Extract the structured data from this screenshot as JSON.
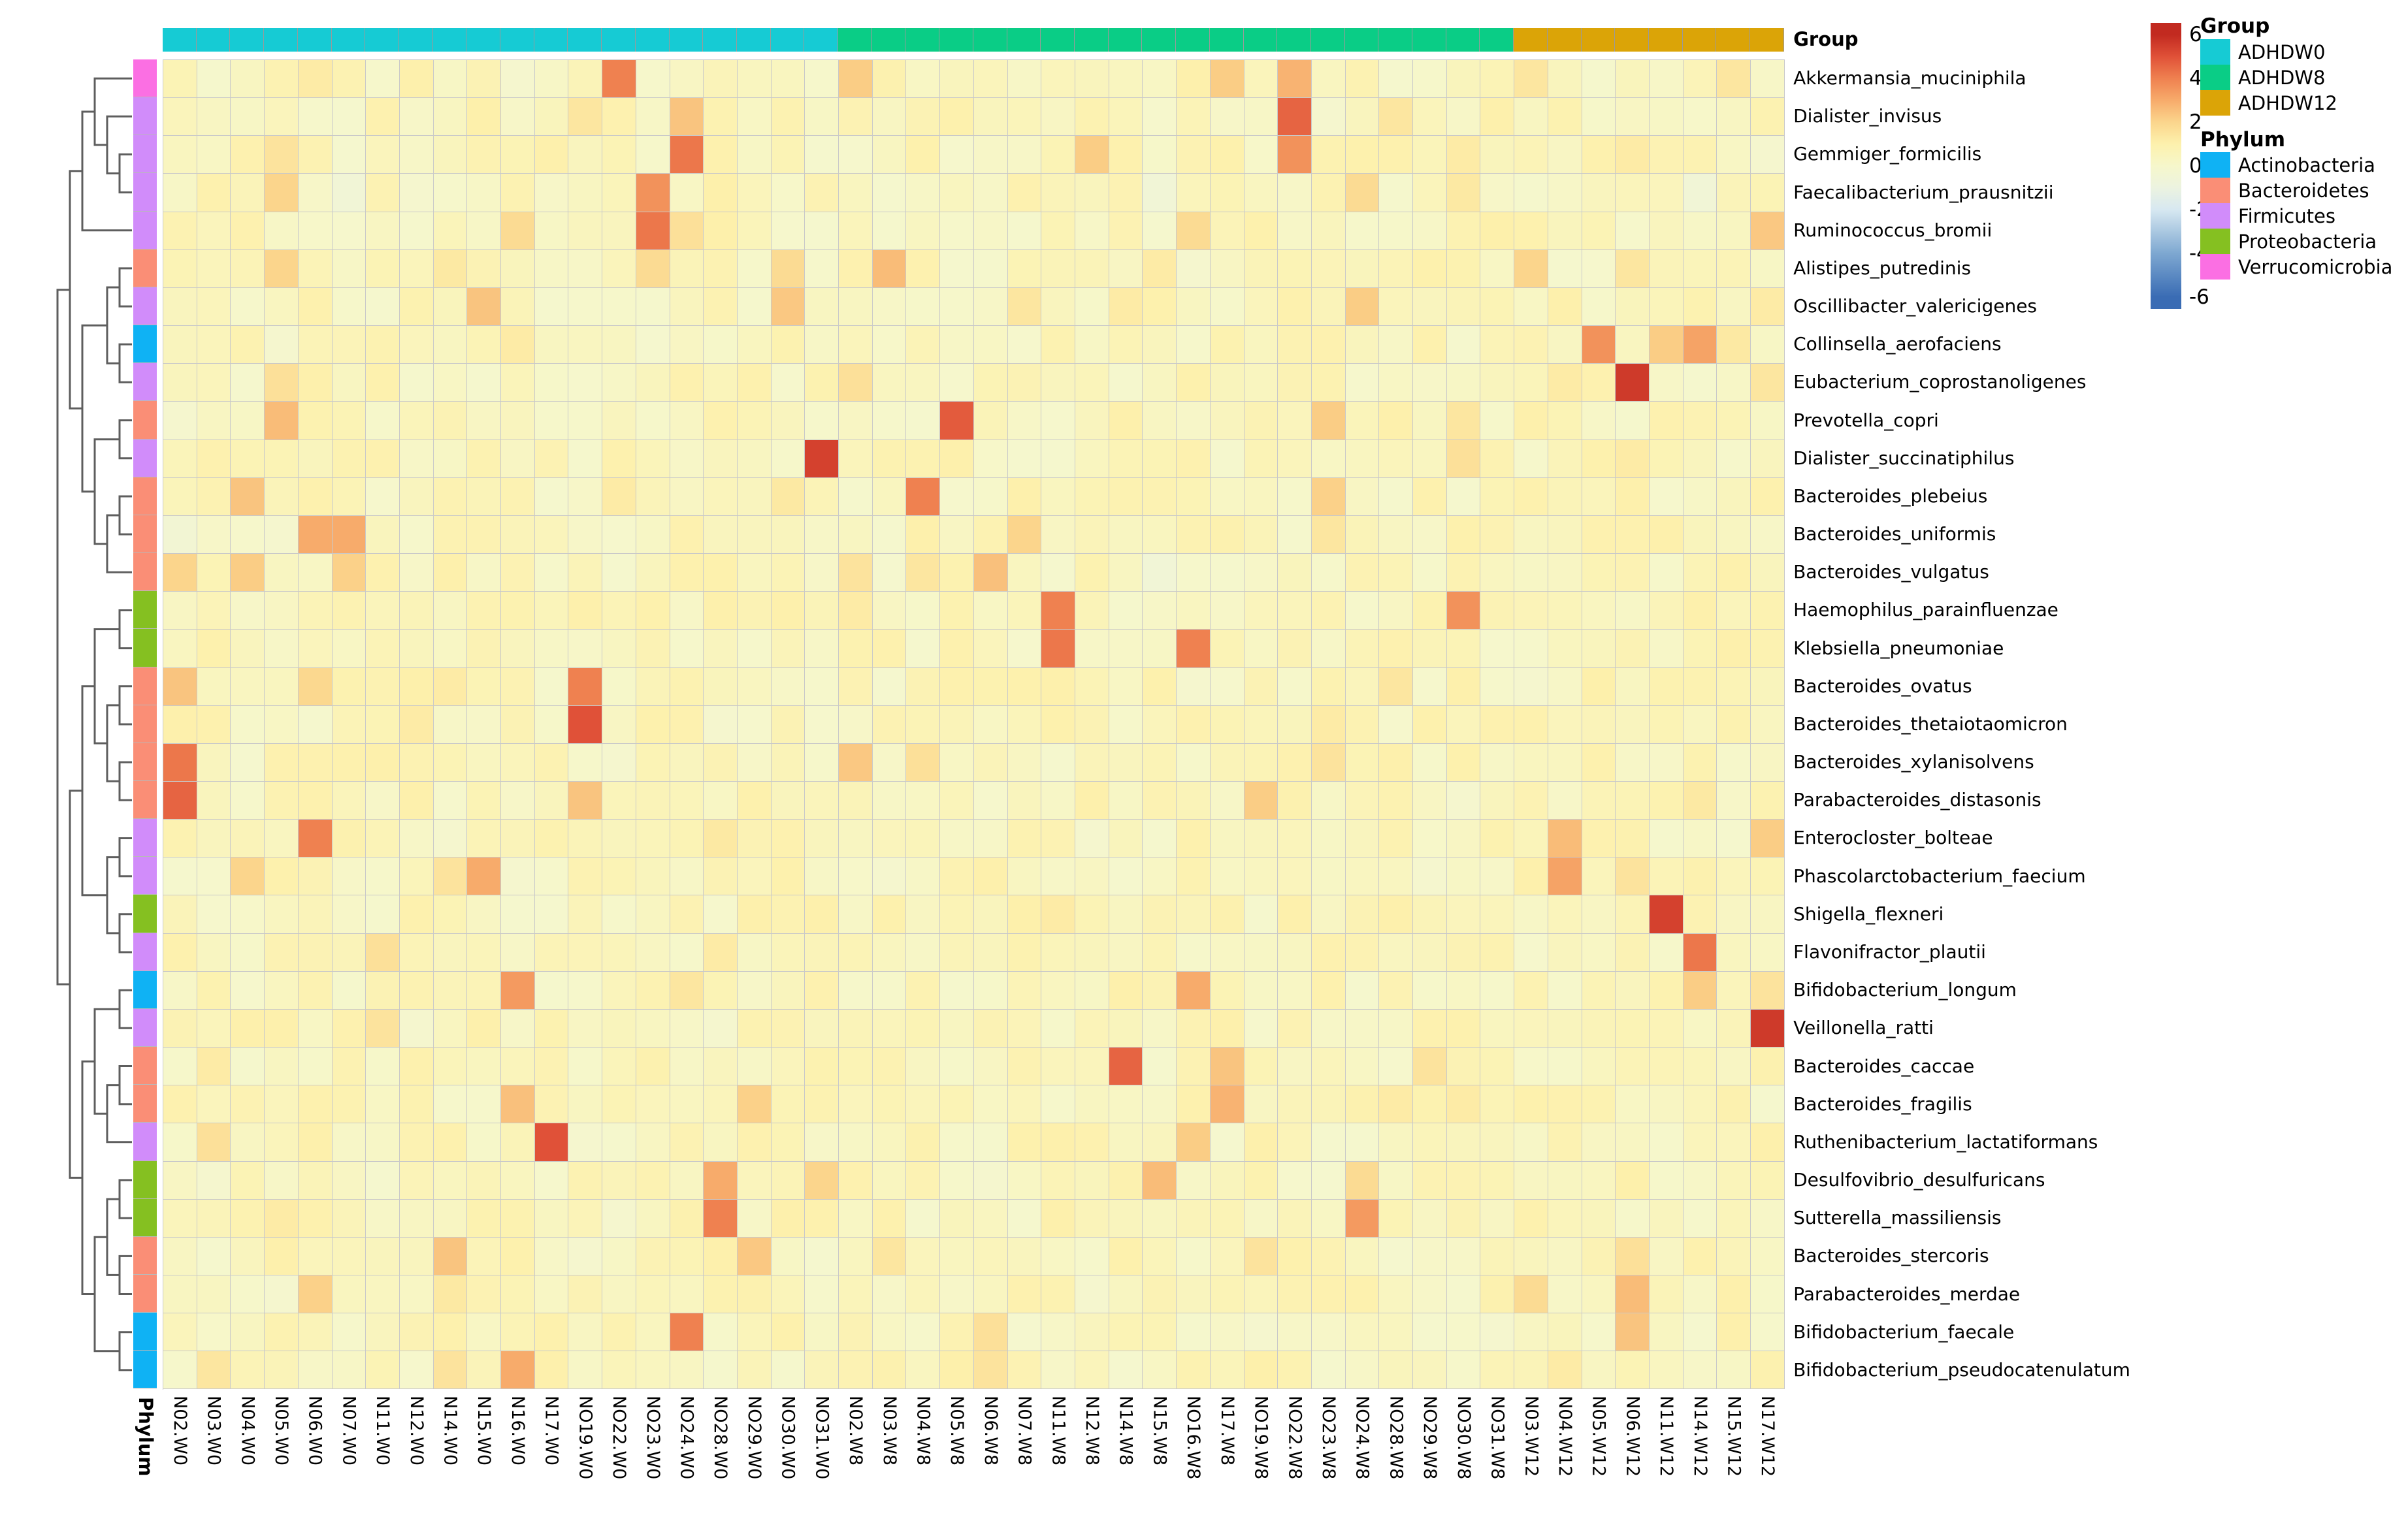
{
  "chart_data": {
    "type": "heatmap",
    "value_domain": [
      -6,
      6
    ],
    "colorbar_ticks": [
      6,
      4,
      2,
      0,
      -2,
      -4,
      -6
    ],
    "annotation_titles": {
      "group": "Group",
      "phylum": "Phylum"
    },
    "legend": {
      "group": {
        "title": "Group",
        "entries": [
          {
            "label": "ADHDW0",
            "color": "#16CBD4"
          },
          {
            "label": "ADHDW8",
            "color": "#0ACD86"
          },
          {
            "label": "ADHDW12",
            "color": "#DBA407"
          }
        ]
      },
      "phylum": {
        "title": "Phylum",
        "entries": [
          {
            "label": "Actinobacteria",
            "color": "#0FB2F4"
          },
          {
            "label": "Bacteroidetes",
            "color": "#FA8E76"
          },
          {
            "label": "Firmicutes",
            "color": "#D18CFA"
          },
          {
            "label": "Proteobacteria",
            "color": "#85C021"
          },
          {
            "label": "Verrucomicrobia",
            "color": "#FB6FE3"
          }
        ]
      }
    },
    "columns": [
      "N02.W0",
      "N03.W0",
      "N04.W0",
      "N05.W0",
      "N06.W0",
      "N07.W0",
      "N11.W0",
      "N12.W0",
      "N14.W0",
      "N15.W0",
      "N16.W0",
      "N17.W0",
      "NO19.W0",
      "NO22.W0",
      "NO23.W0",
      "NO24.W0",
      "NO28.W0",
      "NO29.W0",
      "NO30.W0",
      "NO31.W0",
      "N02.W8",
      "N03.W8",
      "N04.W8",
      "N05.W8",
      "N06.W8",
      "N07.W8",
      "N11.W8",
      "N12.W8",
      "N14.W8",
      "N15.W8",
      "NO16.W8",
      "N17.W8",
      "NO19.W8",
      "NO22.W8",
      "NO23.W8",
      "NO24.W8",
      "NO28.W8",
      "NO29.W8",
      "NO30.W8",
      "NO31.W8",
      "N03.W12",
      "N04.W12",
      "N05.W12",
      "N06.W12",
      "N11.W12",
      "N14.W12",
      "N15.W12",
      "N17.W12"
    ],
    "column_group": [
      0,
      0,
      0,
      0,
      0,
      0,
      0,
      0,
      0,
      0,
      0,
      0,
      0,
      0,
      0,
      0,
      0,
      0,
      0,
      0,
      1,
      1,
      1,
      1,
      1,
      1,
      1,
      1,
      1,
      1,
      1,
      1,
      1,
      1,
      1,
      1,
      1,
      1,
      1,
      1,
      2,
      2,
      2,
      2,
      2,
      2,
      2,
      2
    ],
    "rows": [
      "Akkermansia_muciniphila",
      "Dialister_invisus",
      "Gemmiger_formicilis",
      "Faecalibacterium_prausnitzii",
      "Ruminococcus_bromii",
      "Alistipes_putredinis",
      "Oscillibacter_valericigenes",
      "Collinsella_aerofaciens",
      "Eubacterium_coprostanoligenes",
      "Prevotella_copri",
      "Dialister_succinatiphilus",
      "Bacteroides_plebeius",
      "Bacteroides_uniformis",
      "Bacteroides_vulgatus",
      "Haemophilus_parainfluenzae",
      "Klebsiella_pneumoniae",
      "Bacteroides_ovatus",
      "Bacteroides_thetaiotaomicron",
      "Bacteroides_xylanisolvens",
      "Parabacteroides_distasonis",
      "Enterocloster_bolteae",
      "Phascolarctobacterium_faecium",
      "Shigella_flexneri",
      "Flavonifractor_plautii",
      "Bifidobacterium_longum",
      "Veillonella_ratti",
      "Bacteroides_caccae",
      "Bacteroides_fragilis",
      "Ruthenibacterium_lactatiformans",
      "Desulfovibrio_desulfuricans",
      "Sutterella_massiliensis",
      "Bacteroides_stercoris",
      "Parabacteroides_merdae",
      "Bifidobacterium_faecale",
      "Bifidobacterium_pseudocatenulatum"
    ],
    "row_phylum": [
      4,
      2,
      2,
      2,
      2,
      1,
      2,
      0,
      2,
      1,
      2,
      1,
      1,
      1,
      3,
      3,
      1,
      1,
      1,
      1,
      2,
      2,
      3,
      2,
      0,
      2,
      1,
      1,
      2,
      3,
      3,
      1,
      1,
      0,
      0
    ],
    "base_value": 0.45,
    "jitter_amplitude": 0.6,
    "gradient_stops": [
      [
        -6,
        "#3A6CB4"
      ],
      [
        -4,
        "#7EA8D1"
      ],
      [
        -2,
        "#D7E8F1"
      ],
      [
        -1,
        "#ECF3E0"
      ],
      [
        0,
        "#F6F7CB"
      ],
      [
        1,
        "#FDF1AD"
      ],
      [
        2,
        "#FBD58C"
      ],
      [
        3,
        "#F7AB6B"
      ],
      [
        4,
        "#EF8150"
      ],
      [
        5,
        "#E05138"
      ],
      [
        6,
        "#C22A20"
      ]
    ],
    "hotspots": [
      [
        1,
        5,
        1.2
      ],
      [
        1,
        14,
        4.0
      ],
      [
        1,
        21,
        2.2
      ],
      [
        1,
        32,
        2.2
      ],
      [
        1,
        34,
        2.8
      ],
      [
        1,
        41,
        1.4
      ],
      [
        1,
        47,
        1.4
      ],
      [
        2,
        13,
        1.4
      ],
      [
        2,
        16,
        2.4
      ],
      [
        2,
        34,
        4.6
      ],
      [
        2,
        37,
        1.4
      ],
      [
        2,
        24,
        1.0
      ],
      [
        3,
        4,
        1.5
      ],
      [
        3,
        16,
        4.2
      ],
      [
        3,
        28,
        2.2
      ],
      [
        3,
        34,
        3.6
      ],
      [
        3,
        39,
        1.2
      ],
      [
        3,
        44,
        1.2
      ],
      [
        4,
        4,
        2.0
      ],
      [
        4,
        15,
        3.6
      ],
      [
        4,
        36,
        1.8
      ],
      [
        4,
        39,
        1.3
      ],
      [
        4,
        6,
        -0.5
      ],
      [
        4,
        30,
        -0.5
      ],
      [
        4,
        46,
        -0.5
      ],
      [
        5,
        11,
        1.8
      ],
      [
        5,
        15,
        4.2
      ],
      [
        5,
        16,
        1.6
      ],
      [
        5,
        31,
        1.8
      ],
      [
        5,
        48,
        2.3
      ],
      [
        6,
        4,
        2.0
      ],
      [
        6,
        9,
        1.3
      ],
      [
        6,
        15,
        1.8
      ],
      [
        6,
        19,
        1.8
      ],
      [
        6,
        22,
        2.6
      ],
      [
        6,
        30,
        1.2
      ],
      [
        6,
        41,
        2.0
      ],
      [
        6,
        44,
        1.4
      ],
      [
        7,
        10,
        2.4
      ],
      [
        7,
        19,
        2.3
      ],
      [
        7,
        26,
        1.4
      ],
      [
        7,
        36,
        2.2
      ],
      [
        7,
        29,
        1.2
      ],
      [
        7,
        48,
        1.2
      ],
      [
        8,
        11,
        1.2
      ],
      [
        8,
        43,
        3.6
      ],
      [
        8,
        45,
        2.2
      ],
      [
        8,
        46,
        3.2
      ],
      [
        8,
        47,
        1.3
      ],
      [
        9,
        4,
        1.6
      ],
      [
        9,
        21,
        1.6
      ],
      [
        9,
        44,
        5.6
      ],
      [
        9,
        42,
        1.2
      ],
      [
        9,
        48,
        1.4
      ],
      [
        10,
        4,
        2.6
      ],
      [
        10,
        24,
        4.8
      ],
      [
        10,
        35,
        2.2
      ],
      [
        10,
        39,
        1.4
      ],
      [
        11,
        20,
        5.4
      ],
      [
        11,
        39,
        1.6
      ],
      [
        11,
        44,
        1.2
      ],
      [
        12,
        3,
        2.4
      ],
      [
        12,
        23,
        4.0
      ],
      [
        12,
        35,
        2.1
      ],
      [
        12,
        14,
        1.2
      ],
      [
        12,
        19,
        1.3
      ],
      [
        13,
        5,
        3.0
      ],
      [
        13,
        6,
        3.0
      ],
      [
        13,
        26,
        2.0
      ],
      [
        13,
        35,
        1.4
      ],
      [
        13,
        1,
        -0.4
      ],
      [
        14,
        1,
        2.0
      ],
      [
        14,
        3,
        2.2
      ],
      [
        14,
        6,
        2.1
      ],
      [
        14,
        21,
        1.5
      ],
      [
        14,
        23,
        1.4
      ],
      [
        14,
        25,
        2.5
      ],
      [
        14,
        30,
        -0.5
      ],
      [
        15,
        27,
        4.0
      ],
      [
        15,
        39,
        3.6
      ],
      [
        15,
        21,
        1.2
      ],
      [
        16,
        27,
        4.2
      ],
      [
        16,
        31,
        4.0
      ],
      [
        17,
        1,
        2.4
      ],
      [
        17,
        5,
        1.9
      ],
      [
        17,
        13,
        4.0
      ],
      [
        17,
        9,
        1.2
      ],
      [
        17,
        37,
        1.4
      ],
      [
        18,
        13,
        5.0
      ],
      [
        18,
        8,
        1.2
      ],
      [
        18,
        35,
        1.2
      ],
      [
        19,
        1,
        4.2
      ],
      [
        19,
        21,
        2.3
      ],
      [
        19,
        23,
        1.6
      ],
      [
        19,
        35,
        1.5
      ],
      [
        20,
        1,
        4.6
      ],
      [
        20,
        13,
        2.4
      ],
      [
        20,
        33,
        2.2
      ],
      [
        20,
        46,
        1.3
      ],
      [
        21,
        5,
        4.0
      ],
      [
        21,
        42,
        2.6
      ],
      [
        21,
        48,
        2.2
      ],
      [
        21,
        17,
        1.3
      ],
      [
        22,
        3,
        2.0
      ],
      [
        22,
        10,
        3.0
      ],
      [
        22,
        42,
        3.2
      ],
      [
        22,
        9,
        1.5
      ],
      [
        22,
        44,
        1.5
      ],
      [
        23,
        45,
        5.4
      ],
      [
        23,
        27,
        1.2
      ],
      [
        24,
        7,
        1.6
      ],
      [
        24,
        46,
        4.2
      ],
      [
        24,
        17,
        1.2
      ],
      [
        25,
        11,
        3.4
      ],
      [
        25,
        31,
        3.0
      ],
      [
        25,
        46,
        2.2
      ],
      [
        25,
        16,
        1.4
      ],
      [
        25,
        48,
        1.5
      ],
      [
        26,
        48,
        5.6
      ],
      [
        26,
        7,
        1.5
      ],
      [
        27,
        29,
        4.6
      ],
      [
        27,
        32,
        2.4
      ],
      [
        27,
        38,
        1.5
      ],
      [
        27,
        2,
        1.2
      ],
      [
        28,
        11,
        2.5
      ],
      [
        28,
        18,
        2.1
      ],
      [
        28,
        32,
        2.8
      ],
      [
        28,
        37,
        1.2
      ],
      [
        28,
        39,
        1.2
      ],
      [
        29,
        12,
        5.0
      ],
      [
        29,
        2,
        1.6
      ],
      [
        29,
        31,
        2.2
      ],
      [
        30,
        17,
        3.0
      ],
      [
        30,
        20,
        2.0
      ],
      [
        30,
        30,
        2.6
      ],
      [
        30,
        36,
        1.8
      ],
      [
        31,
        17,
        4.0
      ],
      [
        31,
        36,
        3.4
      ],
      [
        31,
        4,
        1.2
      ],
      [
        32,
        9,
        2.4
      ],
      [
        32,
        18,
        2.3
      ],
      [
        32,
        44,
        1.6
      ],
      [
        32,
        22,
        1.4
      ],
      [
        32,
        33,
        1.5
      ],
      [
        33,
        5,
        2.1
      ],
      [
        33,
        44,
        2.6
      ],
      [
        33,
        41,
        1.8
      ],
      [
        33,
        9,
        1.3
      ],
      [
        34,
        16,
        4.0
      ],
      [
        34,
        44,
        2.4
      ],
      [
        34,
        25,
        1.6
      ],
      [
        35,
        11,
        3.0
      ],
      [
        35,
        9,
        1.5
      ],
      [
        35,
        2,
        1.4
      ],
      [
        35,
        25,
        1.5
      ],
      [
        35,
        42,
        1.2
      ]
    ],
    "row_dendrogram": [
      [
        [
          [
            1,
            [
              2,
              [
                3,
                4
              ]
            ]
          ],
          5
        ],
        [
          [
            [
              6,
              7
            ],
            [
              8,
              9
            ]
          ],
          [
            [
              10,
              11
            ],
            [
              [
                12,
                13
              ],
              14
            ]
          ]
        ]
      ],
      [
        [
          [
            [
              15,
              16
            ],
            [
              [
                17,
                18
              ],
              [
                19,
                20
              ]
            ]
          ],
          [
            [
              21,
              22
            ],
            [
              23,
              24
            ]
          ]
        ],
        [
          [
            [
              25,
              26
            ],
            [
              [
                27,
                28
              ],
              29
            ]
          ],
          [
            [
              [
                30,
                31
              ],
              [
                32,
                33
              ]
            ],
            [
              34,
              35
            ]
          ]
        ]
      ]
    ]
  }
}
